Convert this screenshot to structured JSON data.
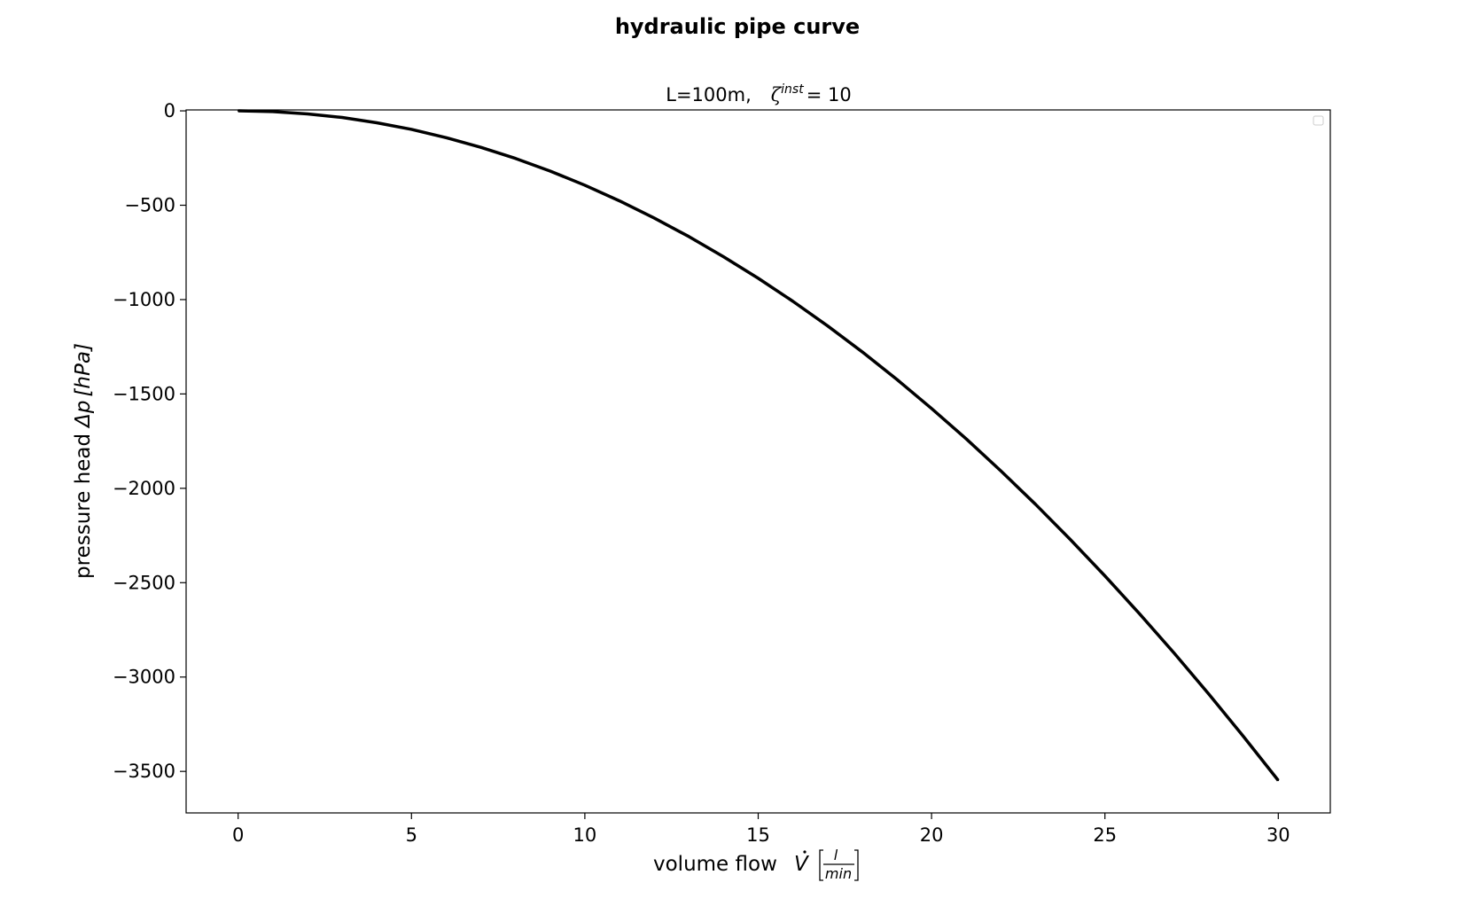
{
  "chart_data": {
    "type": "line",
    "title": "hydraulic pipe curve",
    "subtitle": "L=100m,   ζ^{inst} = 10",
    "subtitle_parts": {
      "prefix": "L=100m,",
      "symbol": "ζ",
      "superscript": "inst",
      "suffix": "= 10"
    },
    "xlabel": "volume flow V̇ [l/min]",
    "xlabel_parts": {
      "text": "volume flow",
      "symbol": "V",
      "unit_numerator": "l",
      "unit_denominator": "min"
    },
    "ylabel": "pressure head Δp [hPa]",
    "ylabel_parts": {
      "text": "pressure head",
      "symbol": "Δp",
      "unit": "[hPa]"
    },
    "xlim": [
      -1.5,
      31.5
    ],
    "ylim": [
      -3720,
      5
    ],
    "xticks": [
      0,
      5,
      10,
      15,
      20,
      25,
      30
    ],
    "xtick_labels": [
      "0",
      "5",
      "10",
      "15",
      "20",
      "25",
      "30"
    ],
    "yticks": [
      0,
      -500,
      -1000,
      -1500,
      -2000,
      -2500,
      -3000,
      -3500
    ],
    "ytick_labels": [
      "0",
      "−500",
      "−1000",
      "−1500",
      "−2000",
      "−2500",
      "−3000",
      "−3500"
    ],
    "grid": false,
    "legend": "top-right (empty)",
    "series": [
      {
        "color": "#000000",
        "x": [
          0,
          1,
          2,
          3,
          4,
          5,
          6,
          7,
          8,
          9,
          10,
          11,
          12,
          13,
          14,
          15,
          16,
          17,
          18,
          19,
          20,
          21,
          22,
          23,
          24,
          25,
          26,
          27,
          28,
          29,
          30
        ],
        "y": [
          0,
          -4,
          -16,
          -35,
          -63,
          -98,
          -142,
          -193,
          -252,
          -319,
          -394,
          -477,
          -568,
          -666,
          -773,
          -887,
          -1009,
          -1139,
          -1277,
          -1423,
          -1577,
          -1738,
          -1908,
          -2085,
          -2271,
          -2464,
          -2665,
          -2874,
          -3091,
          -3316,
          -3548
        ]
      }
    ]
  }
}
